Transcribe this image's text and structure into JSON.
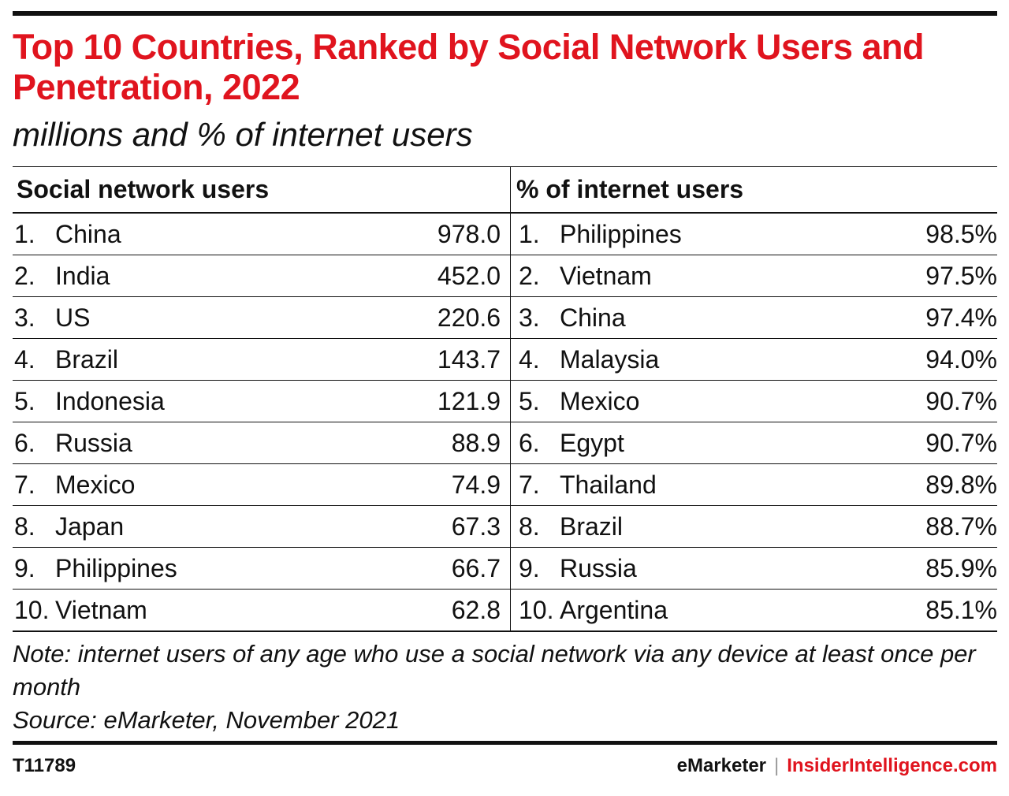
{
  "title": "Top 10 Countries, Ranked by Social Network Users and Penetration, 2022",
  "subtitle": "millions and % of internet users",
  "chart_data": {
    "type": "table",
    "columns": [
      {
        "header": "Social network users",
        "rows": [
          {
            "rank": "1.",
            "country": "China",
            "value": "978.0"
          },
          {
            "rank": "2.",
            "country": "India",
            "value": "452.0"
          },
          {
            "rank": "3.",
            "country": "US",
            "value": "220.6"
          },
          {
            "rank": "4.",
            "country": "Brazil",
            "value": "143.7"
          },
          {
            "rank": "5.",
            "country": "Indonesia",
            "value": "121.9"
          },
          {
            "rank": "6.",
            "country": "Russia",
            "value": "88.9"
          },
          {
            "rank": "7.",
            "country": "Mexico",
            "value": "74.9"
          },
          {
            "rank": "8.",
            "country": "Japan",
            "value": "67.3"
          },
          {
            "rank": "9.",
            "country": "Philippines",
            "value": "66.7"
          },
          {
            "rank": "10.",
            "country": "Vietnam",
            "value": "62.8"
          }
        ]
      },
      {
        "header": "% of internet users",
        "rows": [
          {
            "rank": "1.",
            "country": "Philippines",
            "value": "98.5%"
          },
          {
            "rank": "2.",
            "country": "Vietnam",
            "value": "97.5%"
          },
          {
            "rank": "3.",
            "country": "China",
            "value": "97.4%"
          },
          {
            "rank": "4.",
            "country": "Malaysia",
            "value": "94.0%"
          },
          {
            "rank": "5.",
            "country": "Mexico",
            "value": "90.7%"
          },
          {
            "rank": "6.",
            "country": "Egypt",
            "value": "90.7%"
          },
          {
            "rank": "7.",
            "country": "Thailand",
            "value": "89.8%"
          },
          {
            "rank": "8.",
            "country": "Brazil",
            "value": "88.7%"
          },
          {
            "rank": "9.",
            "country": "Russia",
            "value": "85.9%"
          },
          {
            "rank": "10.",
            "country": "Argentina",
            "value": "85.1%"
          }
        ]
      }
    ]
  },
  "note": "Note: internet users of any age who use a social network via any device at least once per month",
  "source": "Source: eMarketer, November 2021",
  "footer": {
    "chart_id": "T11789",
    "brand_primary": "eMarketer",
    "brand_separator": "|",
    "brand_secondary": "InsiderIntelligence.com"
  },
  "colors": {
    "accent": "#e0141e",
    "text": "#111111"
  }
}
